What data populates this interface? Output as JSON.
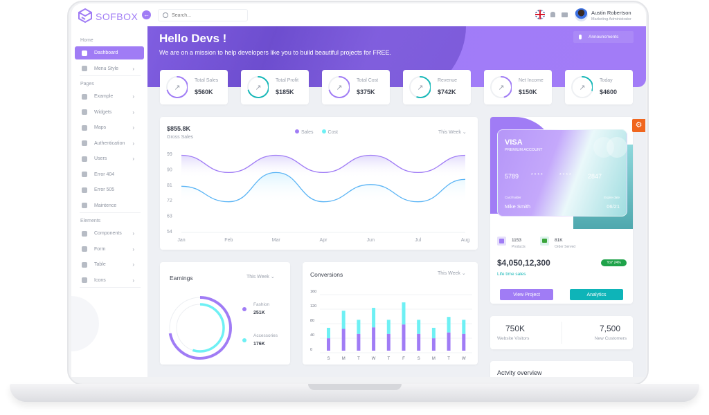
{
  "header": {
    "logo": "SOFBOX",
    "search_placeholder": "Search...",
    "user_name": "Austin Robertson",
    "user_role": "Marketing Administrator"
  },
  "sidebar": {
    "sections": [
      {
        "label": "Home",
        "items": [
          {
            "label": "Dashboard",
            "icon": "grid-icon",
            "active": true,
            "chevron": false
          },
          {
            "label": "Menu Style",
            "icon": "sliders-icon",
            "chevron": true
          }
        ]
      },
      {
        "label": "Pages",
        "items": [
          {
            "label": "Example",
            "icon": "camera-icon",
            "chevron": true
          },
          {
            "label": "Widgets",
            "icon": "widget-icon",
            "chevron": true
          },
          {
            "label": "Maps",
            "icon": "map-pin-icon",
            "chevron": true
          },
          {
            "label": "Authentication",
            "icon": "shield-icon",
            "chevron": true
          },
          {
            "label": "Users",
            "icon": "users-icon",
            "chevron": true
          },
          {
            "label": "Error 404",
            "icon": "alert-circle-icon",
            "chevron": false
          },
          {
            "label": "Error 505",
            "icon": "warning-icon",
            "chevron": false
          },
          {
            "label": "Maintence",
            "icon": "chat-icon",
            "chevron": false
          }
        ]
      },
      {
        "label": "Elements",
        "items": [
          {
            "label": "Components",
            "icon": "component-icon",
            "chevron": true
          },
          {
            "label": "Form",
            "icon": "form-icon",
            "chevron": true
          },
          {
            "label": "Table",
            "icon": "table-icon",
            "chevron": true
          },
          {
            "label": "Icons",
            "icon": "info-icon",
            "chevron": true
          }
        ]
      }
    ]
  },
  "banner": {
    "title": "Hello Devs !",
    "subtitle": "We are on a mission to help developers like you to build beautiful projects for FREE.",
    "announcements": "Announcments"
  },
  "stats": [
    {
      "label": "Total Sales",
      "value": "$560K",
      "color": "#a07cf5",
      "progress": 0.7
    },
    {
      "label": "Total Profit",
      "value": "$185K",
      "color": "#18b8b8",
      "progress": 0.7
    },
    {
      "label": "Total Cost",
      "value": "$375K",
      "color": "#a07cf5",
      "progress": 0.7
    },
    {
      "label": "Revenue",
      "value": "$742K",
      "color": "#18b8b8",
      "progress": 0.55
    },
    {
      "label": "Net Income",
      "value": "$150K",
      "color": "#a07cf5",
      "progress": 0.45
    },
    {
      "label": "Today",
      "value": "$4600",
      "color": "#18b8b8",
      "progress": 0.3
    }
  ],
  "gross": {
    "amount": "$855.8K",
    "label": "Gross Sales",
    "period": "This Week"
  },
  "earnings": {
    "title": "Earnings",
    "period": "This Week",
    "items": [
      {
        "label": "Fashion",
        "value": "251K",
        "color": "#a07cf5",
        "fraction": 0.72
      },
      {
        "label": "Accessories",
        "value": "176K",
        "color": "#6ef0f4",
        "fraction": 0.55
      }
    ]
  },
  "conversions": {
    "title": "Conversions",
    "period": "This Week"
  },
  "chart_data": [
    {
      "type": "area",
      "categories": [
        "Jan",
        "Feb",
        "Mar",
        "Apr",
        "Jun",
        "Jul",
        "Aug"
      ],
      "ylim": [
        54,
        99
      ],
      "yticks": [
        "99",
        "90",
        "81",
        "72",
        "63",
        "54"
      ],
      "legend": "top-center",
      "series": [
        {
          "name": "Sales",
          "color": "#a07cf5",
          "values": [
            98,
            88,
            98,
            88,
            98,
            88,
            98
          ]
        },
        {
          "name": "Cost",
          "color": "#5ab4f5",
          "values": [
            80,
            71,
            88,
            71,
            81,
            71,
            84
          ]
        }
      ]
    },
    {
      "type": "bar",
      "stacked": true,
      "categories": [
        "S",
        "M",
        "T",
        "W",
        "T",
        "F",
        "S",
        "M",
        "T",
        "W"
      ],
      "ylim": [
        0,
        160
      ],
      "yticks": [
        "160",
        "120",
        "80",
        "40",
        "0"
      ],
      "series": [
        {
          "color": "#a07cf5",
          "values": [
            34,
            60,
            46,
            64,
            46,
            72,
            46,
            34,
            50,
            46
          ]
        },
        {
          "color": "#6ef0f4",
          "values": [
            29,
            50,
            39,
            54,
            39,
            61,
            39,
            29,
            43,
            39
          ]
        }
      ]
    },
    {
      "type": "pie",
      "note_free": true,
      "series": [
        {
          "name": "Fashion",
          "values": [
            0.72
          ]
        },
        {
          "name": "Accessories",
          "values": [
            0.55
          ]
        }
      ]
    }
  ],
  "visa": {
    "brand": "VISA",
    "tier": "PREMIUM ACCOUNT",
    "num1": "5789",
    "mask1": "* * * *",
    "mask2": "* * * *",
    "num2": "2847",
    "holder_label": "Card holder",
    "holder": "Mike Smith",
    "expire_label": "Expire date",
    "expire": "06/21"
  },
  "summary": {
    "products_value": "1153",
    "products_label": "Products",
    "orders_value": "81K",
    "orders_label": "Order Served",
    "total": "$4,050,12,300",
    "yoy": "YoY 24%",
    "lifetime": "Life time sales",
    "view_project": "View Project",
    "analytics": "Analytics"
  },
  "visitors": {
    "visitors_value": "750K",
    "visitors_label": "Website Visitors",
    "customers_value": "7,500",
    "customers_label": "New Customers"
  },
  "activity": {
    "title": "Actvity overview"
  },
  "colors": {
    "accent": "#a07cf5",
    "teal": "#18b8b8",
    "cyan": "#6ef0f4",
    "settings": "#f0661e",
    "yoy": "#1fa34a"
  }
}
